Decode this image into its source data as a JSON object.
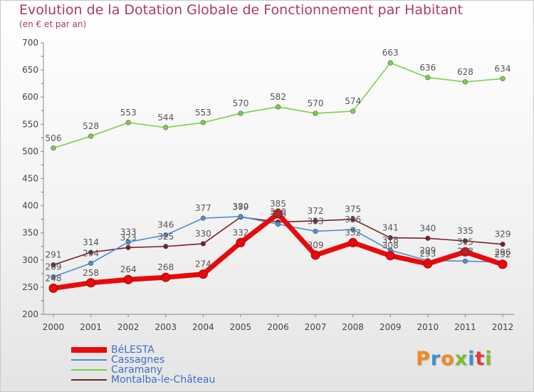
{
  "header": {
    "title": "Evolution de la Dotation Globale de Fonctionnement par Habitant",
    "subtitle": "(en € et par an)"
  },
  "logo": {
    "text": "Proxiti",
    "colors": [
      "#f08a1c",
      "#3d8fd6",
      "#f08a1c",
      "#7abf2e",
      "#3d8fd6",
      "#e23c3c",
      "#7abf2e"
    ]
  },
  "chart_data": {
    "type": "line",
    "title": "Evolution de la Dotation Globale de Fonctionnement par Habitant",
    "subtitle": "(en € et par an)",
    "xlabel": "",
    "ylabel": "",
    "ylim": [
      200,
      700
    ],
    "yticks": [
      200,
      250,
      300,
      350,
      400,
      450,
      500,
      550,
      600,
      650,
      700
    ],
    "grid": false,
    "legend_position": "bottom-left",
    "categories": [
      "2000",
      "2001",
      "2002",
      "2003",
      "2004",
      "2005",
      "2006",
      "2007",
      "2008",
      "2009",
      "2010",
      "2011",
      "2012"
    ],
    "series": [
      {
        "name": "BéLESTA",
        "color": "#e80a0a",
        "values": [
          248,
          258,
          264,
          268,
          274,
          332,
          385,
          309,
          332,
          308,
          293,
          315,
          292
        ]
      },
      {
        "name": "Cassagnes",
        "color": "#4a8fd0",
        "values": [
          269,
          294,
          333,
          346,
          377,
          380,
          366,
          353,
          356,
          318,
          299,
          298,
          296
        ]
      },
      {
        "name": "Caramany",
        "color": "#7ad04a",
        "values": [
          506,
          528,
          553,
          544,
          553,
          570,
          582,
          570,
          574,
          663,
          636,
          628,
          634
        ]
      },
      {
        "name": "Montalba-le-Château",
        "color": "#7a1f2a",
        "values": [
          291,
          314,
          323,
          325,
          330,
          379,
          370,
          372,
          375,
          341,
          340,
          335,
          329
        ]
      }
    ]
  }
}
